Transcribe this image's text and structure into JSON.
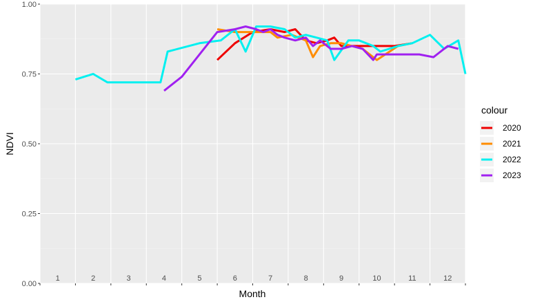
{
  "chart_data": {
    "type": "line",
    "xlabel": "Month",
    "ylabel": "NDVI",
    "ylim": [
      0,
      1
    ],
    "xlim": [
      0.5,
      12.5
    ],
    "y_ticks": [
      0.0,
      0.25,
      0.5,
      0.75,
      1.0
    ],
    "y_tick_labels": [
      "0.00",
      "0.25",
      "0.50",
      "0.75",
      "1.00"
    ],
    "x_tick_labels": [
      "1",
      "2",
      "3",
      "4",
      "5",
      "6",
      "7",
      "8",
      "9",
      "10",
      "11",
      "12"
    ],
    "grid": true,
    "legend_title": "colour",
    "legend_position": "right",
    "series": [
      {
        "name": "2020",
        "color": "#ee0000",
        "x": [
          5.5,
          6.0,
          6.5,
          7.0,
          7.4,
          7.7,
          8.0,
          8.3,
          8.6,
          8.8,
          9.0,
          9.5,
          10.0,
          10.5,
          11.0
        ],
        "y": [
          0.8,
          0.86,
          0.9,
          0.91,
          0.9,
          0.91,
          0.87,
          0.86,
          0.87,
          0.88,
          0.85,
          0.85,
          0.85,
          0.85,
          0.86
        ]
      },
      {
        "name": "2021",
        "color": "#ff8c00",
        "x": [
          5.5,
          6.0,
          6.5,
          7.0,
          7.2,
          7.6,
          8.0,
          8.2,
          8.4,
          8.7,
          9.0,
          9.6,
          10.0,
          10.6,
          11.0
        ],
        "y": [
          0.91,
          0.9,
          0.9,
          0.9,
          0.88,
          0.89,
          0.87,
          0.81,
          0.85,
          0.86,
          0.86,
          0.84,
          0.8,
          0.85,
          0.86
        ]
      },
      {
        "name": "2022",
        "color": "#00f0f0",
        "x": [
          1.5,
          2.0,
          2.4,
          3.2,
          3.9,
          4.1,
          5.0,
          5.6,
          6.0,
          6.3,
          6.6,
          7.0,
          7.4,
          7.7,
          8.0,
          8.3,
          8.6,
          8.8,
          9.2,
          9.5,
          9.9,
          10.1,
          10.6,
          11.0,
          11.5,
          11.9,
          12.3,
          12.5
        ],
        "y": [
          0.73,
          0.75,
          0.72,
          0.72,
          0.72,
          0.83,
          0.86,
          0.87,
          0.91,
          0.83,
          0.92,
          0.92,
          0.91,
          0.88,
          0.89,
          0.88,
          0.87,
          0.8,
          0.87,
          0.87,
          0.85,
          0.83,
          0.85,
          0.86,
          0.89,
          0.84,
          0.87,
          0.75
        ]
      },
      {
        "name": "2023",
        "color": "#a020f0",
        "x": [
          4.0,
          4.5,
          5.0,
          5.5,
          6.0,
          6.3,
          6.6,
          6.8,
          7.0,
          7.2,
          7.4,
          7.7,
          8.0,
          8.2,
          8.4,
          8.7,
          9.0,
          9.3,
          9.6,
          9.9,
          10.0,
          10.3,
          10.8,
          11.2,
          11.6,
          12.0,
          12.3
        ],
        "y": [
          0.69,
          0.74,
          0.82,
          0.9,
          0.91,
          0.92,
          0.91,
          0.9,
          0.91,
          0.89,
          0.88,
          0.87,
          0.88,
          0.85,
          0.87,
          0.84,
          0.84,
          0.85,
          0.84,
          0.8,
          0.82,
          0.82,
          0.82,
          0.82,
          0.81,
          0.85,
          0.84
        ]
      }
    ]
  }
}
